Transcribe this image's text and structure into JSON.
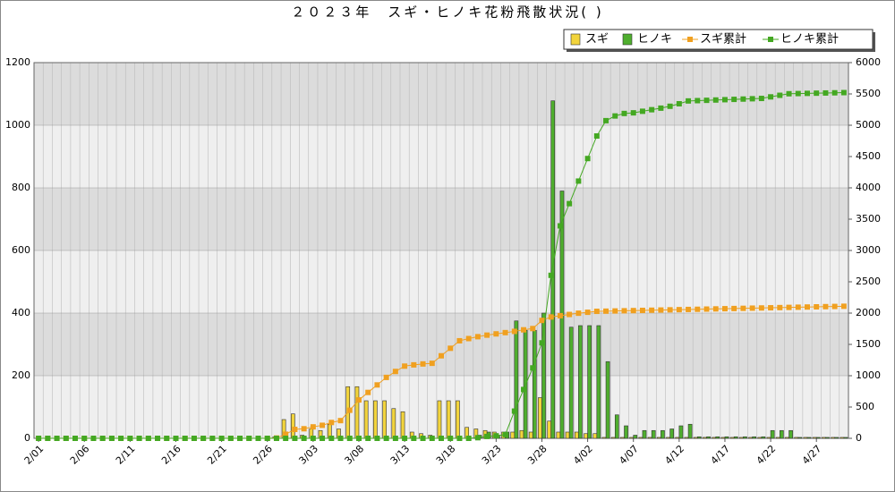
{
  "chart_data": {
    "type": "bar",
    "title": "２０２３年　スギ・ヒノキ花粉飛散状況( )",
    "categories": [
      "2/01",
      null,
      null,
      null,
      null,
      "2/06",
      null,
      null,
      null,
      null,
      "2/11",
      null,
      null,
      null,
      null,
      "2/16",
      null,
      null,
      null,
      null,
      "2/21",
      null,
      null,
      null,
      null,
      "2/26",
      null,
      null,
      null,
      null,
      "3/03",
      null,
      null,
      null,
      null,
      "3/08",
      null,
      null,
      null,
      null,
      "3/13",
      null,
      null,
      null,
      null,
      "3/18",
      null,
      null,
      null,
      null,
      "3/23",
      null,
      null,
      null,
      null,
      "3/28",
      null,
      null,
      null,
      null,
      "4/02",
      null,
      null,
      null,
      null,
      "4/07",
      null,
      null,
      null,
      null,
      "4/12",
      null,
      null,
      null,
      null,
      "4/17",
      null,
      null,
      null,
      null,
      "4/22",
      null,
      null,
      null,
      null,
      "4/27",
      null,
      null,
      null
    ],
    "series": [
      {
        "name": "スギ",
        "type": "bar",
        "color": "#f2d43c",
        "values": [
          0,
          0,
          0,
          0,
          0,
          0,
          0,
          0,
          0,
          0,
          0,
          0,
          0,
          0,
          0,
          0,
          0,
          0,
          0,
          0,
          0,
          0,
          0,
          0,
          0,
          0,
          5,
          60,
          78,
          10,
          30,
          25,
          45,
          30,
          165,
          165,
          120,
          120,
          120,
          95,
          85,
          20,
          15,
          10,
          120,
          120,
          120,
          35,
          30,
          25,
          20,
          20,
          20,
          25,
          20,
          130,
          55,
          20,
          20,
          20,
          15,
          15,
          3,
          3,
          3,
          3,
          3,
          3,
          3,
          3,
          3,
          3,
          3,
          3,
          3,
          3,
          3,
          3,
          3,
          3,
          3,
          3,
          3,
          3,
          3,
          3,
          3,
          3,
          3
        ]
      },
      {
        "name": "ヒノキ",
        "type": "bar",
        "color": "#4fae2e",
        "values": [
          0,
          0,
          0,
          0,
          0,
          0,
          0,
          0,
          0,
          0,
          0,
          0,
          0,
          0,
          0,
          0,
          0,
          0,
          0,
          0,
          0,
          0,
          0,
          0,
          0,
          0,
          0,
          0,
          0,
          0,
          0,
          0,
          0,
          0,
          0,
          0,
          0,
          0,
          0,
          0,
          0,
          0,
          0,
          0,
          0,
          0,
          0,
          0,
          10,
          20,
          10,
          20,
          375,
          345,
          345,
          400,
          1078,
          790,
          355,
          360,
          360,
          360,
          245,
          75,
          40,
          10,
          25,
          25,
          25,
          30,
          40,
          45,
          5,
          5,
          5,
          5,
          5,
          5,
          5,
          5,
          25,
          25,
          25,
          3,
          3,
          3,
          3,
          3,
          3
        ]
      },
      {
        "name": "スギ累計",
        "type": "line",
        "axis": "y2",
        "color": "#f0a020",
        "values": [
          0,
          0,
          0,
          0,
          0,
          0,
          0,
          0,
          0,
          0,
          0,
          0,
          0,
          0,
          0,
          0,
          0,
          0,
          0,
          0,
          0,
          0,
          0,
          0,
          0,
          0,
          5,
          65,
          143,
          153,
          183,
          208,
          253,
          283,
          448,
          613,
          733,
          853,
          973,
          1068,
          1153,
          1173,
          1188,
          1198,
          1318,
          1438,
          1558,
          1593,
          1623,
          1648,
          1668,
          1688,
          1708,
          1733,
          1753,
          1883,
          1938,
          1958,
          1978,
          1998,
          2013,
          2028,
          2031,
          2034,
          2037,
          2040,
          2043,
          2046,
          2049,
          2052,
          2055,
          2058,
          2061,
          2064,
          2067,
          2070,
          2073,
          2076,
          2079,
          2082,
          2085,
          2088,
          2091,
          2094,
          2097,
          2100,
          2103,
          2106,
          2109
        ]
      },
      {
        "name": "ヒノキ累計",
        "type": "line",
        "axis": "y2",
        "color": "#44a822",
        "values": [
          0,
          0,
          0,
          0,
          0,
          0,
          0,
          0,
          0,
          0,
          0,
          0,
          0,
          0,
          0,
          0,
          0,
          0,
          0,
          0,
          0,
          0,
          0,
          0,
          0,
          0,
          0,
          0,
          0,
          0,
          0,
          0,
          0,
          0,
          0,
          0,
          0,
          0,
          0,
          0,
          0,
          0,
          0,
          0,
          0,
          0,
          0,
          0,
          10,
          30,
          40,
          60,
          435,
          780,
          1125,
          1525,
          2603,
          3393,
          3748,
          4108,
          4468,
          4828,
          5073,
          5148,
          5188,
          5198,
          5223,
          5248,
          5273,
          5303,
          5343,
          5388,
          5393,
          5398,
          5403,
          5408,
          5413,
          5418,
          5423,
          5428,
          5453,
          5478,
          5503,
          5506,
          5509,
          5512,
          5515,
          5518,
          5521
        ]
      }
    ],
    "ylim": [
      0,
      1200
    ],
    "yticks": [
      0,
      200,
      400,
      600,
      800,
      1000,
      1200
    ],
    "y2lim": [
      0,
      6000
    ],
    "y2ticks": [
      0,
      500,
      1000,
      1500,
      2000,
      2500,
      3000,
      3500,
      4000,
      4500,
      5000,
      5500,
      6000
    ],
    "grid": true,
    "legend": "top-right"
  }
}
